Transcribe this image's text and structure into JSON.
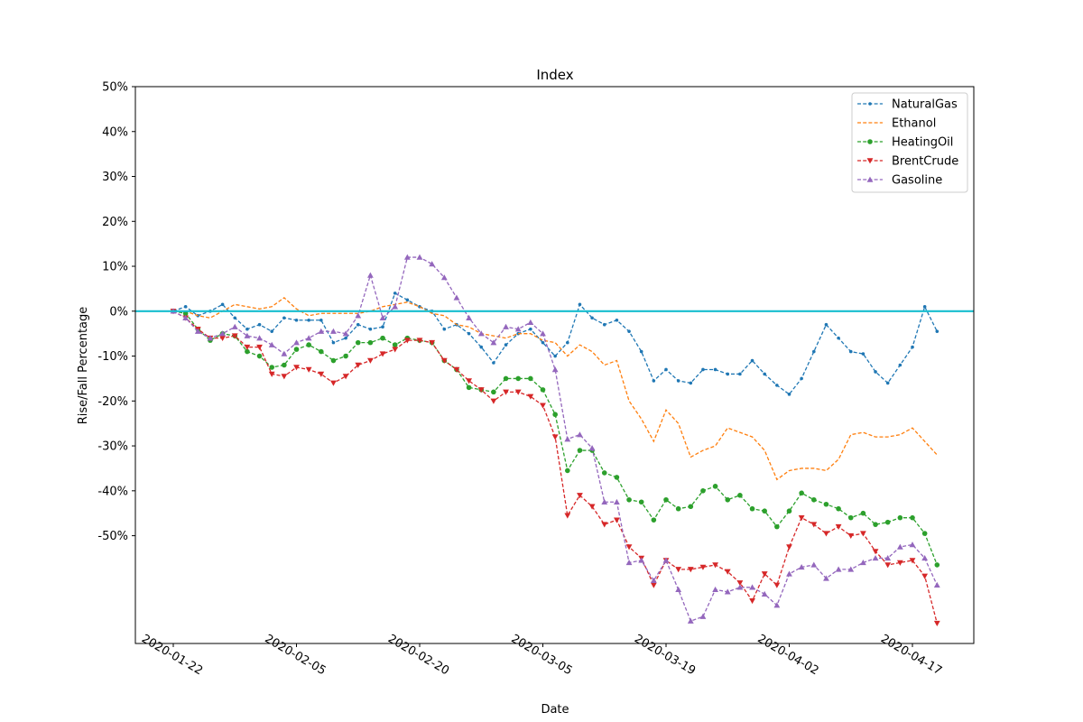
{
  "chart_data": {
    "type": "line",
    "title": "Index",
    "xlabel": "Date",
    "ylabel": "Rise/Fall Percentage",
    "ylim": [
      -74,
      50
    ],
    "y_ticks": [
      50,
      40,
      30,
      20,
      10,
      0,
      -10,
      -20,
      -30,
      -40,
      -50
    ],
    "y_tick_labels": [
      "50%",
      "40%",
      "30%",
      "20%",
      "10%",
      "0%",
      "-10%",
      "-20%",
      "-30%",
      "-40%",
      "-50%"
    ],
    "x_tick_labels": [
      "2020-01-22",
      "2020-02-05",
      "2020-02-20",
      "2020-03-05",
      "2020-03-19",
      "2020-04-02",
      "2020-04-17"
    ],
    "x_tick_index": [
      0,
      10,
      20,
      30,
      40,
      50,
      60
    ],
    "grid": false,
    "legend_position": "top-right",
    "reference_line": {
      "y": 0,
      "color": "#17becf"
    },
    "series": [
      {
        "name": "NaturalGas",
        "color": "#1f77b4",
        "marker": "dot",
        "values": [
          0,
          1,
          -1,
          0,
          1.5,
          -1.5,
          -4,
          -3,
          -4.5,
          -1.5,
          -2,
          -2,
          -2,
          -7,
          -6,
          -3,
          -4,
          -3.5,
          4,
          2.5,
          1,
          0,
          -4,
          -3,
          -5,
          -8,
          -11.5,
          -7.5,
          -5,
          -4,
          -7,
          -10,
          -7,
          1.5,
          -1.5,
          -3,
          -2,
          -4.5,
          -9,
          -15.5,
          -13,
          -15.5,
          -16,
          -13,
          -13,
          -14,
          -14,
          -11,
          -14,
          -16.5,
          -18.5,
          -15,
          -9,
          -3,
          -6,
          -9,
          -9.5,
          -13.5,
          -16,
          -12,
          -8,
          1,
          -4.5
        ]
      },
      {
        "name": "Ethanol",
        "color": "#ff7f0e",
        "marker": "none",
        "values": [
          0,
          0,
          -1,
          -1.5,
          0,
          1.5,
          1,
          0.5,
          1,
          3,
          0.5,
          -1,
          -0.5,
          -0.5,
          -0.5,
          -0.5,
          0,
          1,
          1.5,
          2,
          1,
          -0.5,
          -1,
          -3,
          -3.5,
          -5,
          -5.5,
          -6,
          -5,
          -5,
          -6.5,
          -7,
          -10,
          -7.5,
          -9,
          -12,
          -11,
          -20,
          -24,
          -29,
          -22,
          -25,
          -32.5,
          -31,
          -30,
          -26,
          -27,
          -28,
          -31,
          -37.5,
          -35.5,
          -35,
          -35,
          -35.5,
          -33,
          -27.5,
          -27,
          -28,
          -28,
          -27.5,
          -26,
          -29,
          -32
        ]
      },
      {
        "name": "HeatingOil",
        "color": "#2ca02c",
        "marker": "circle",
        "values": [
          0,
          -0.5,
          -4,
          -6.5,
          -5,
          -5.5,
          -9,
          -10,
          -12.5,
          -12,
          -8.5,
          -7.5,
          -9,
          -11,
          -10,
          -7,
          -7,
          -6,
          -7.5,
          -6,
          -6.5,
          -7,
          -11,
          -13,
          -17,
          -17.5,
          -18,
          -15,
          -15,
          -15,
          -17.5,
          -23,
          -35.5,
          -31,
          -31,
          -36,
          -37,
          -42,
          -42.5,
          -46.5,
          -42,
          -44,
          -43.5,
          -40,
          -39,
          -42,
          -41,
          -44,
          -44.5,
          -48,
          -44.5,
          -40.5,
          -42,
          -43,
          -44,
          -46,
          -45,
          -47.5,
          -47,
          -46,
          -46,
          -49.5,
          -56.5
        ]
      },
      {
        "name": "BrentCrude",
        "color": "#d62728",
        "marker": "triangle-down",
        "values": [
          0,
          -1.5,
          -4,
          -6,
          -6,
          -5.5,
          -8,
          -8,
          -14,
          -14.5,
          -12.5,
          -13,
          -14,
          -16,
          -14.5,
          -12,
          -11,
          -9.5,
          -8.5,
          -6.5,
          -6.5,
          -7,
          -11,
          -13,
          -15.5,
          -17.5,
          -20,
          -18,
          -18,
          -19,
          -21,
          -28,
          -45.5,
          -41,
          -43.5,
          -47.5,
          -46.5,
          -52.5,
          -55,
          -61,
          -55.5,
          -57.5,
          -57.5,
          -57,
          -56.5,
          -58,
          -60.5,
          -64.5,
          -58.5,
          -61,
          -52.5,
          -46,
          -47.5,
          -49.5,
          -48,
          -50,
          -49.5,
          -53.5,
          -56.5,
          -56,
          -55.5,
          -59,
          -69.5
        ]
      },
      {
        "name": "Gasoline",
        "color": "#9467bd",
        "marker": "triangle-up",
        "values": [
          0,
          -1.5,
          -4.5,
          -6,
          -5,
          -3.5,
          -5.5,
          -6,
          -7.5,
          -9.5,
          -7,
          -6,
          -4.5,
          -4.5,
          -5,
          -1,
          8,
          -1.5,
          1,
          12,
          12,
          10.5,
          7.5,
          3,
          -1.5,
          -5,
          -7,
          -3.5,
          -4,
          -2.5,
          -5,
          -13,
          -28.5,
          -27.5,
          -30.5,
          -42.5,
          -42.5,
          -56,
          -55.5,
          -60,
          -55.5,
          -62,
          -69,
          -68,
          -62,
          -62.5,
          -61.5,
          -61.5,
          -63,
          -65.5,
          -58.5,
          -57,
          -56.5,
          -59.5,
          -57.5,
          -57.5,
          -56,
          -55,
          -55,
          -52.5,
          -52,
          -55,
          -61
        ]
      }
    ]
  }
}
